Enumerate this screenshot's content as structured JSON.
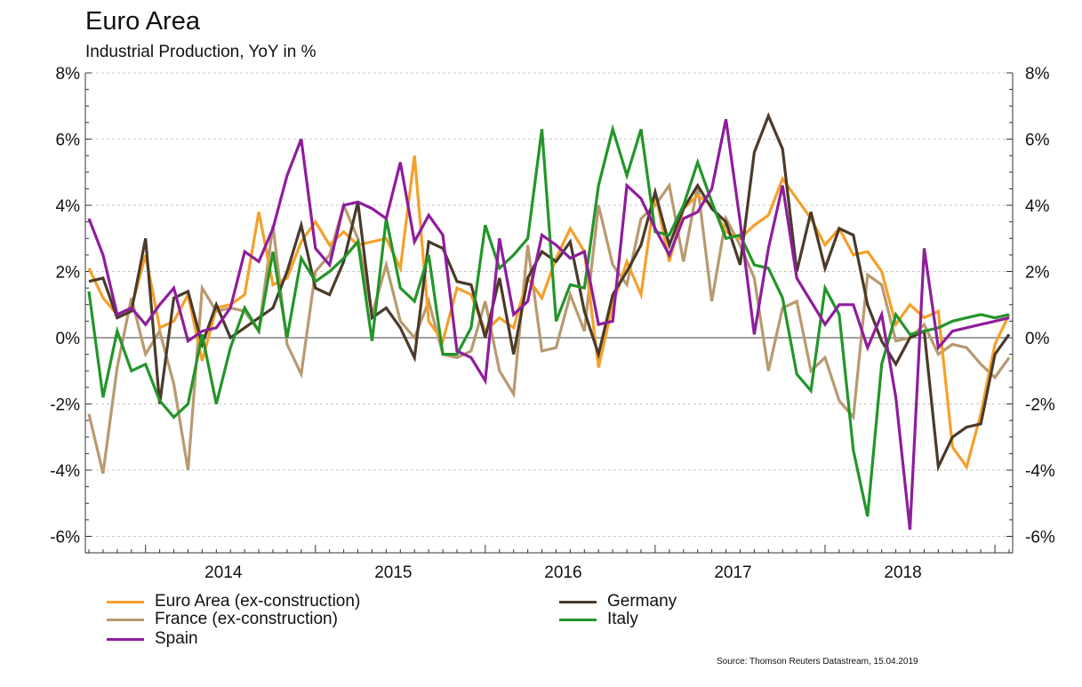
{
  "header": {
    "title": "Euro Area",
    "subtitle": "Industrial Production, YoY in %"
  },
  "source": "Source: Thomson Reuters Datastream, 15.04.2019",
  "colors": {
    "euro": "#f5a02a",
    "germany": "#4a3a2a",
    "france": "#b89a70",
    "italy": "#23952a",
    "spain": "#8e1d9c",
    "zero_line": "#666666",
    "grid": "#c8c8c8"
  },
  "chart_data": {
    "type": "line",
    "x_start": "2013-09",
    "x_end": "2019-02",
    "ylim": [
      -6.5,
      8
    ],
    "y_ticks": [
      -6,
      -4,
      -2,
      0,
      2,
      4,
      6,
      8
    ],
    "y_tick_labels": [
      "-6%",
      "-4%",
      "-2%",
      "0%",
      "2%",
      "4%",
      "6%",
      "8%"
    ],
    "x_tick_labels": [
      "2014",
      "2015",
      "2016",
      "2017",
      "2018"
    ],
    "grid": true,
    "legend_position": "bottom",
    "months": [
      "2013-09",
      "2013-10",
      "2013-11",
      "2013-12",
      "2014-01",
      "2014-02",
      "2014-03",
      "2014-04",
      "2014-05",
      "2014-06",
      "2014-07",
      "2014-08",
      "2014-09",
      "2014-10",
      "2014-11",
      "2014-12",
      "2015-01",
      "2015-02",
      "2015-03",
      "2015-04",
      "2015-05",
      "2015-06",
      "2015-07",
      "2015-08",
      "2015-09",
      "2015-10",
      "2015-11",
      "2015-12",
      "2016-01",
      "2016-02",
      "2016-03",
      "2016-04",
      "2016-05",
      "2016-06",
      "2016-07",
      "2016-08",
      "2016-09",
      "2016-10",
      "2016-11",
      "2016-12",
      "2017-01",
      "2017-02",
      "2017-03",
      "2017-04",
      "2017-05",
      "2017-06",
      "2017-07",
      "2017-08",
      "2017-09",
      "2017-10",
      "2017-11",
      "2017-12",
      "2018-01",
      "2018-02",
      "2018-03",
      "2018-04",
      "2018-05",
      "2018-06",
      "2018-07",
      "2018-08",
      "2018-09",
      "2018-10",
      "2018-11",
      "2018-12",
      "2019-01",
      "2019-02"
    ],
    "series": [
      {
        "key": "euro",
        "name": "Euro Area (ex-construction)",
        "values": [
          2.1,
          1.2,
          0.7,
          0.9,
          2.5,
          0.3,
          0.5,
          1.3,
          -0.7,
          0.9,
          1.0,
          1.3,
          3.8,
          1.6,
          1.8,
          2.9,
          3.5,
          2.8,
          3.2,
          2.8,
          2.9,
          3.0,
          2.1,
          5.5,
          0.5,
          -0.1,
          1.5,
          1.3,
          0.2,
          0.6,
          0.3,
          1.8,
          1.2,
          2.4,
          3.3,
          2.6,
          -0.9,
          1.0,
          2.3,
          1.3,
          4.4,
          2.3,
          3.9,
          4.3,
          4.0,
          3.2,
          3.0,
          3.4,
          3.7,
          4.8,
          4.2,
          3.6,
          2.8,
          3.3,
          2.5,
          2.6,
          2.0,
          0.4,
          1.0,
          0.6,
          0.8,
          -3.3,
          -3.9,
          -2.3,
          -0.2,
          0.7
        ]
      },
      {
        "key": "germany",
        "name": "Germany",
        "values": [
          1.7,
          1.8,
          0.6,
          0.8,
          3.0,
          -2.0,
          1.2,
          1.4,
          -0.2,
          1.0,
          0.0,
          0.3,
          0.6,
          0.9,
          2.0,
          3.4,
          1.5,
          1.3,
          2.3,
          4.1,
          0.6,
          0.9,
          0.3,
          -0.6,
          2.9,
          2.7,
          1.7,
          1.6,
          0.0,
          1.8,
          -0.5,
          1.8,
          2.6,
          2.3,
          2.9,
          0.8,
          -0.5,
          1.3,
          2.0,
          2.8,
          4.4,
          2.8,
          3.9,
          4.6,
          3.9,
          3.5,
          2.2,
          5.6,
          6.7,
          5.7,
          2.0,
          3.8,
          2.1,
          3.3,
          3.1,
          1.0,
          -0.1,
          -0.8,
          0.0,
          0.2,
          -3.9,
          -3.0,
          -2.7,
          -2.6,
          -0.5,
          0.1
        ]
      },
      {
        "key": "france",
        "name": "France (ex-construction)",
        "values": [
          -2.3,
          -4.1,
          -0.9,
          1.2,
          -0.5,
          0.2,
          -1.4,
          -4.0,
          1.5,
          0.8,
          0.9,
          0.8,
          0.2,
          3.4,
          -0.2,
          -1.1,
          2.0,
          2.5,
          4.0,
          3.0,
          0.7,
          2.2,
          0.5,
          0.0,
          1.1,
          -0.5,
          -0.6,
          -0.4,
          1.1,
          -1.0,
          -1.7,
          2.8,
          -0.4,
          -0.3,
          1.3,
          0.2,
          4.0,
          2.2,
          1.6,
          3.6,
          4.0,
          4.6,
          2.3,
          4.6,
          1.1,
          3.6,
          2.8,
          1.8,
          -1.0,
          0.9,
          1.1,
          -1.0,
          -0.6,
          -1.9,
          -2.4,
          1.9,
          1.6,
          -0.1,
          0.0,
          0.4,
          -0.5,
          -0.2,
          -0.3,
          -0.8,
          -1.2,
          -0.6
        ]
      },
      {
        "key": "italy",
        "name": "Italy",
        "values": [
          1.4,
          -1.8,
          0.2,
          -1.0,
          -0.8,
          -1.9,
          -2.4,
          -2.0,
          0.1,
          -2.0,
          -0.3,
          0.9,
          0.2,
          2.6,
          0.0,
          2.4,
          1.7,
          2.0,
          2.4,
          2.9,
          -0.1,
          3.6,
          1.5,
          1.1,
          2.5,
          -0.5,
          -0.5,
          0.3,
          3.4,
          2.1,
          2.5,
          3.0,
          6.3,
          0.5,
          1.6,
          1.5,
          4.6,
          6.3,
          4.9,
          6.3,
          3.2,
          3.1,
          4.0,
          5.3,
          4.1,
          3.0,
          3.1,
          2.2,
          2.1,
          1.2,
          -1.1,
          -1.6,
          1.5,
          0.7,
          -3.4,
          -5.4,
          -0.8,
          0.7,
          0.1,
          0.2,
          0.3,
          0.5,
          0.6,
          0.7,
          0.6,
          0.7
        ]
      },
      {
        "key": "spain",
        "name": "Spain",
        "values": [
          3.6,
          2.5,
          0.7,
          0.9,
          0.4,
          1.0,
          1.5,
          -0.1,
          0.2,
          0.3,
          0.9,
          2.6,
          2.3,
          3.3,
          4.9,
          6.0,
          2.7,
          2.2,
          4.0,
          4.1,
          3.9,
          3.6,
          5.3,
          2.9,
          3.7,
          3.1,
          -0.4,
          -0.6,
          -1.3,
          3.0,
          0.7,
          1.1,
          3.1,
          2.8,
          2.4,
          2.6,
          0.4,
          0.5,
          4.6,
          4.2,
          3.3,
          2.5,
          3.6,
          3.8,
          4.5,
          6.6,
          3.5,
          0.1,
          2.7,
          4.6,
          1.8,
          1.1,
          0.4,
          1.0,
          1.0,
          -0.3,
          0.7,
          -1.8,
          -5.8,
          2.7,
          -0.3,
          0.2,
          0.3,
          0.4,
          0.5,
          0.6
        ]
      }
    ]
  }
}
